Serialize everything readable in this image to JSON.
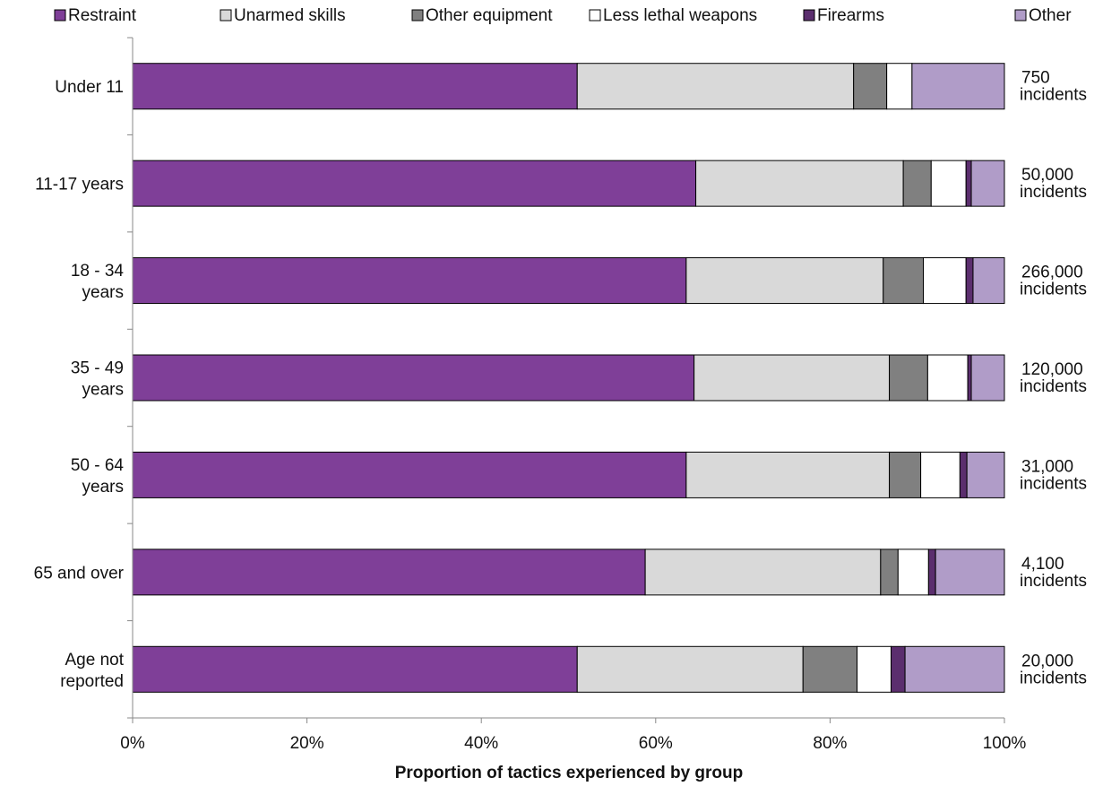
{
  "chart_data": {
    "type": "bar",
    "orientation": "horizontal",
    "stacked": true,
    "normalized": true,
    "title": "",
    "xlabel": "Proportion of tactics experienced by group",
    "ylabel": "",
    "xlim": [
      0,
      100
    ],
    "x_ticks": [
      "0%",
      "20%",
      "40%",
      "60%",
      "80%",
      "100%"
    ],
    "grid": false,
    "legend_position": "top",
    "categories": [
      [
        "Under 11"
      ],
      [
        "11-17 years"
      ],
      [
        "18 - 34",
        "years"
      ],
      [
        "35 - 49",
        "years"
      ],
      [
        "50 - 64",
        "years"
      ],
      [
        "65 and over"
      ],
      [
        "Age not",
        "reported"
      ]
    ],
    "bar_notes": [
      [
        "750",
        "incidents"
      ],
      [
        "50,000",
        "incidents"
      ],
      [
        "266,000",
        "incidents"
      ],
      [
        "120,000",
        "incidents"
      ],
      [
        "31,000",
        "incidents"
      ],
      [
        "4,100",
        "incidents"
      ],
      [
        "20,000",
        "incidents"
      ]
    ],
    "series": [
      {
        "name": "Restraint",
        "color": "#7f3f98",
        "values": [
          51,
          64.6,
          63.5,
          64.4,
          63.5,
          58.8,
          51
        ]
      },
      {
        "name": "Unarmed skills",
        "color": "#d9d9d9",
        "values": [
          31.7,
          23.8,
          22.6,
          22.4,
          23.3,
          27.0,
          25.9
        ]
      },
      {
        "name": "Other equipment",
        "color": "#808080",
        "values": [
          3.8,
          3.2,
          4.6,
          4.4,
          3.6,
          2.0,
          6.2
        ]
      },
      {
        "name": "Less lethal weapons",
        "color": "#ffffff",
        "values": [
          2.9,
          4.0,
          4.9,
          4.6,
          4.5,
          3.5,
          3.9
        ]
      },
      {
        "name": "Firearms",
        "color": "#5b2e6e",
        "values": [
          0,
          0.6,
          0.8,
          0.4,
          0.8,
          0.8,
          1.6
        ]
      },
      {
        "name": "Other",
        "color": "#b09cc8",
        "values": [
          10.6,
          3.8,
          3.6,
          3.8,
          4.3,
          7.9,
          11.4
        ]
      }
    ]
  }
}
